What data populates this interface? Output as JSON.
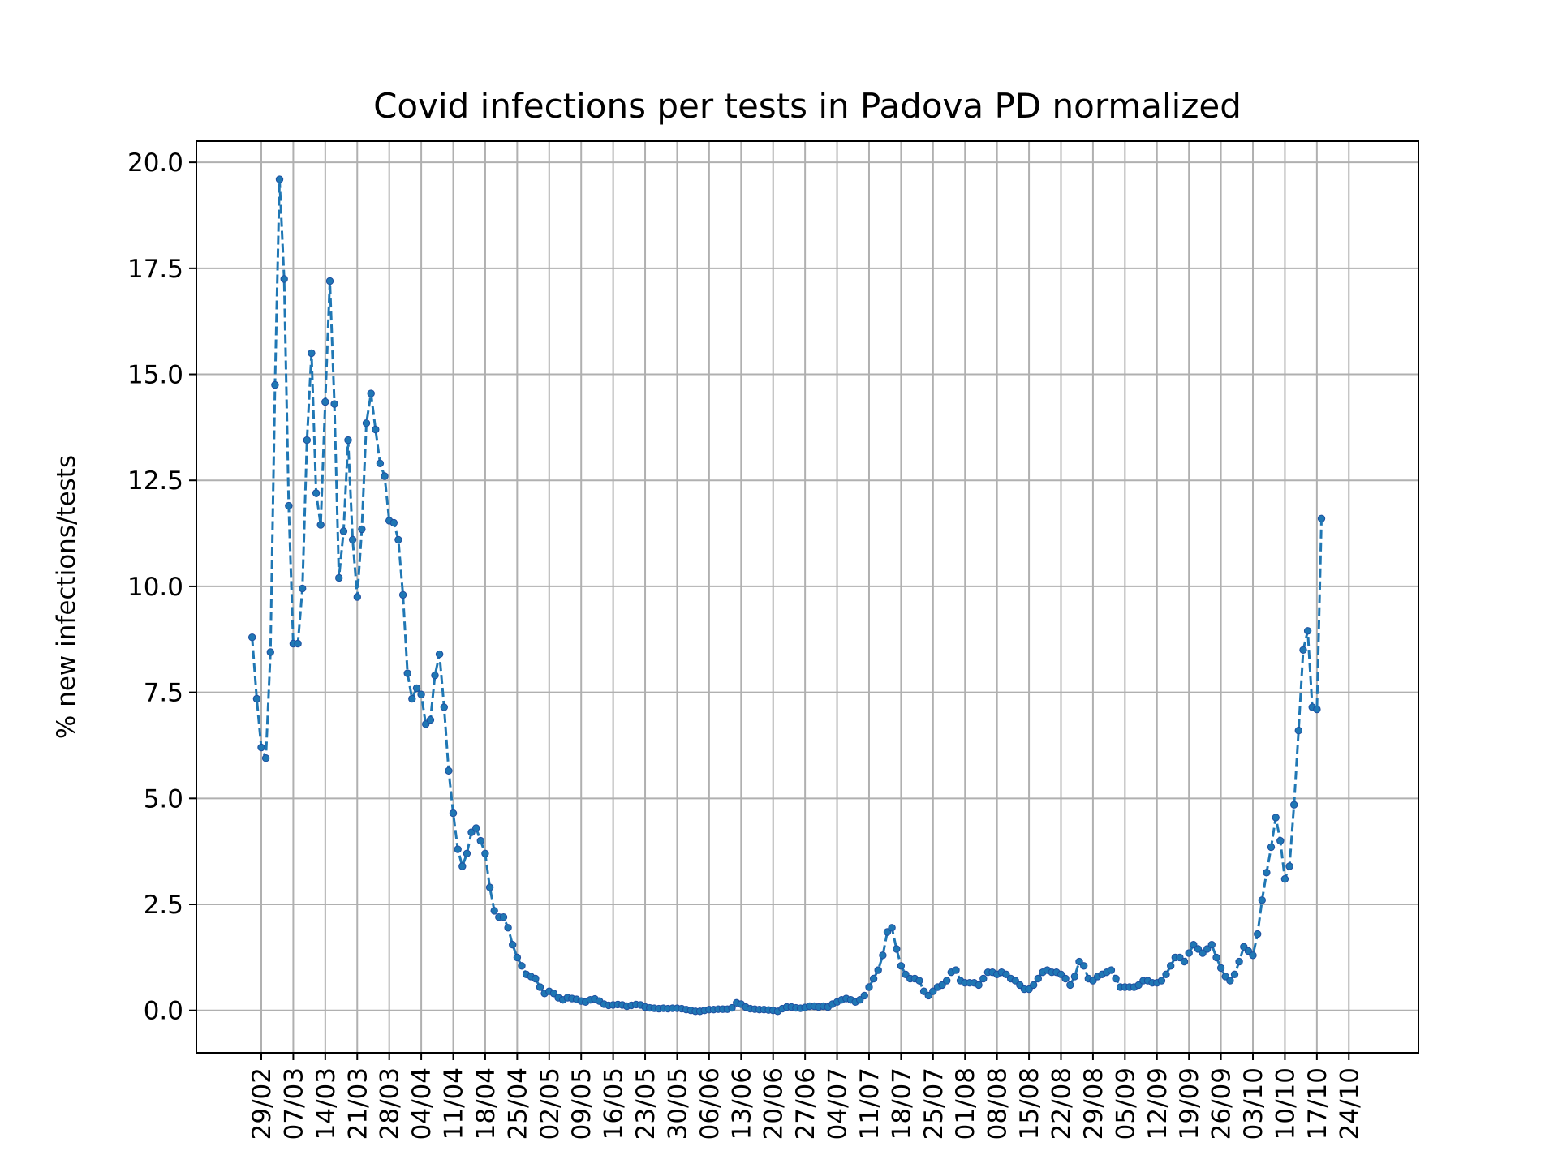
{
  "chart_data": {
    "type": "line",
    "title": "Covid infections per tests in Padova PD normalized",
    "xlabel": "",
    "ylabel": "% new infections/tests",
    "x_tick_labels": [
      "29/02",
      "07/03",
      "14/03",
      "21/03",
      "28/03",
      "04/04",
      "11/04",
      "18/04",
      "25/04",
      "02/05",
      "09/05",
      "16/05",
      "23/05",
      "30/05",
      "06/06",
      "13/06",
      "20/06",
      "27/06",
      "04/07",
      "11/07",
      "18/07",
      "25/07",
      "01/08",
      "08/08",
      "15/08",
      "22/08",
      "29/08",
      "05/09",
      "12/09",
      "19/09",
      "26/09",
      "03/10",
      "10/10",
      "17/10",
      "24/10"
    ],
    "y_ticks": [
      "0.0",
      "2.5",
      "5.0",
      "7.5",
      "10.0",
      "12.5",
      "15.0",
      "17.5",
      "20.0"
    ],
    "ylim": [
      -1.0,
      20.5
    ],
    "x_start": "27/02",
    "x_end": "24/10",
    "grid": true,
    "color": "#1f77b4",
    "marker_color": "#1f4fa0",
    "values": [
      8.8,
      7.35,
      6.2,
      5.95,
      8.45,
      14.75,
      19.6,
      17.25,
      11.9,
      8.65,
      8.65,
      9.95,
      13.45,
      15.5,
      12.2,
      11.45,
      14.35,
      17.2,
      14.3,
      10.2,
      11.3,
      13.45,
      11.1,
      9.75,
      11.35,
      13.85,
      14.55,
      13.7,
      12.9,
      12.6,
      11.55,
      11.5,
      11.1,
      9.8,
      7.95,
      7.35,
      7.6,
      7.45,
      6.75,
      6.85,
      7.9,
      8.4,
      7.15,
      5.65,
      4.65,
      3.8,
      3.4,
      3.7,
      4.2,
      4.3,
      4.0,
      3.7,
      2.9,
      2.35,
      2.2,
      2.2,
      1.95,
      1.55,
      1.25,
      1.05,
      0.85,
      0.8,
      0.75,
      0.55,
      0.4,
      0.45,
      0.4,
      0.3,
      0.25,
      0.3,
      0.28,
      0.26,
      0.22,
      0.2,
      0.25,
      0.27,
      0.22,
      0.15,
      0.12,
      0.13,
      0.14,
      0.13,
      0.1,
      0.12,
      0.14,
      0.13,
      0.08,
      0.06,
      0.05,
      0.04,
      0.05,
      0.04,
      0.05,
      0.05,
      0.04,
      0.02,
      0.0,
      -0.02,
      -0.02,
      0.0,
      0.02,
      0.02,
      0.03,
      0.03,
      0.03,
      0.06,
      0.18,
      0.15,
      0.08,
      0.04,
      0.03,
      0.02,
      0.02,
      0.01,
      0.0,
      -0.02,
      0.04,
      0.08,
      0.08,
      0.06,
      0.05,
      0.07,
      0.1,
      0.1,
      0.08,
      0.1,
      0.08,
      0.15,
      0.2,
      0.25,
      0.28,
      0.25,
      0.2,
      0.25,
      0.35,
      0.55,
      0.75,
      0.95,
      1.3,
      1.85,
      1.95,
      1.45,
      1.05,
      0.85,
      0.75,
      0.75,
      0.7,
      0.45,
      0.35,
      0.45,
      0.55,
      0.6,
      0.7,
      0.9,
      0.95,
      0.7,
      0.65,
      0.65,
      0.65,
      0.6,
      0.75,
      0.9,
      0.9,
      0.85,
      0.9,
      0.85,
      0.75,
      0.7,
      0.6,
      0.5,
      0.5,
      0.6,
      0.75,
      0.9,
      0.95,
      0.9,
      0.9,
      0.85,
      0.75,
      0.6,
      0.8,
      1.15,
      1.05,
      0.75,
      0.7,
      0.8,
      0.85,
      0.9,
      0.95,
      0.75,
      0.55,
      0.55,
      0.55,
      0.55,
      0.6,
      0.7,
      0.7,
      0.65,
      0.65,
      0.7,
      0.85,
      1.05,
      1.25,
      1.25,
      1.15,
      1.35,
      1.55,
      1.45,
      1.35,
      1.45,
      1.55,
      1.25,
      1.0,
      0.8,
      0.7,
      0.85,
      1.15,
      1.5,
      1.4,
      1.3,
      1.8,
      2.6,
      3.25,
      3.85,
      4.55,
      4.0,
      3.1,
      3.4,
      4.85,
      6.6,
      8.5,
      8.95,
      7.15,
      7.1,
      11.6
    ]
  }
}
